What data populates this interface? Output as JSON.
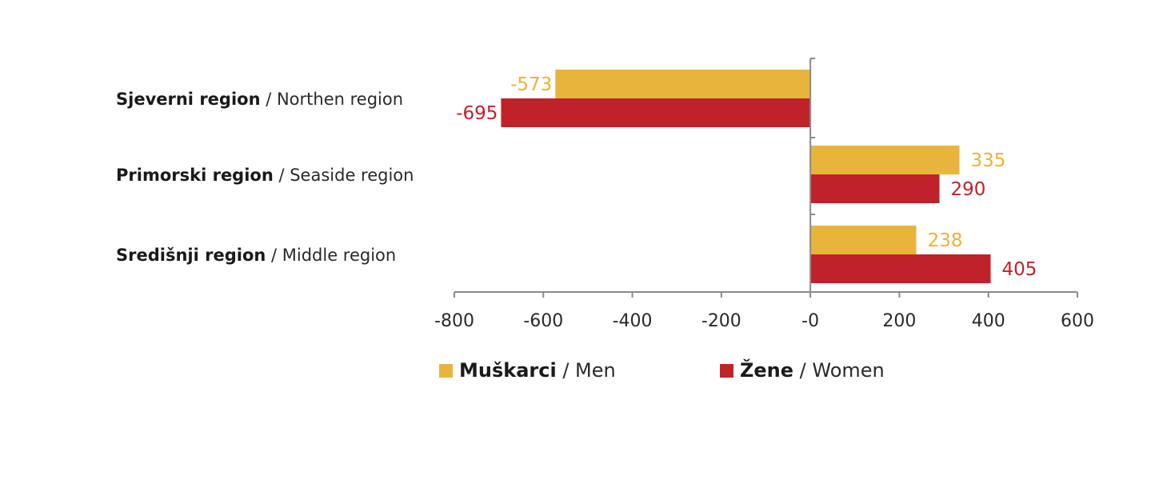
{
  "chart_data": {
    "type": "bar",
    "orientation": "horizontal",
    "categories": [
      {
        "bold": "Sjeverni region",
        "sep": " / ",
        "normal": "Northen region"
      },
      {
        "bold": "Primorski region",
        "sep": " / ",
        "normal": "Seaside region"
      },
      {
        "bold": "Središnji region",
        "sep": " / ",
        "normal": "Middle region"
      }
    ],
    "series": [
      {
        "bold": "Muškarci",
        "sep": " / ",
        "normal": "Men",
        "color": "#e8b43c",
        "values": [
          -573,
          335,
          238
        ]
      },
      {
        "bold": "Žene",
        "sep": " / ",
        "normal": "Women",
        "color": "#c0222a",
        "values": [
          -695,
          290,
          405
        ]
      }
    ],
    "xlim": [
      -800,
      600
    ],
    "xticks": [
      -800,
      -600,
      -400,
      -200,
      0,
      200,
      400,
      600
    ],
    "xtick_labels": [
      "-800",
      "-600",
      "-400",
      "-200",
      "-0",
      "200",
      "400",
      "600"
    ],
    "legend_position": "bottom",
    "grid": false
  }
}
